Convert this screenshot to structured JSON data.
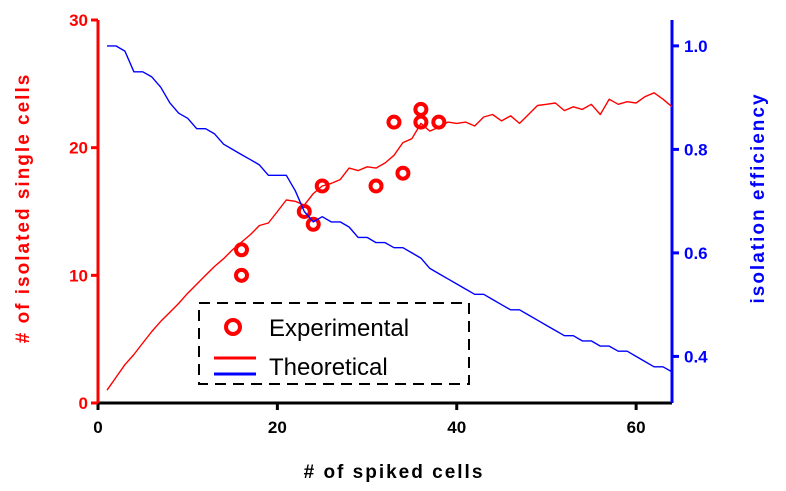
{
  "colors": {
    "experimental": "#ff0000",
    "theoretical_cells": "#ff0000",
    "theoretical_efficiency": "#0000ff",
    "left_axis": "#ff0000",
    "right_axis": "#0000ff",
    "bottom_axis": "#000000"
  },
  "chart_data": {
    "type": "line",
    "xlabel": "# of spiked cells",
    "ylabel_left": "# of isolated single cells",
    "ylabel_right": "isolation efficiency",
    "xlim": [
      0,
      64
    ],
    "ylim_left": [
      0,
      30
    ],
    "ylim_right": [
      0.31,
      1.05
    ],
    "x_ticks": [
      0,
      20,
      40,
      60
    ],
    "y_left_ticks": [
      0,
      10,
      20,
      30
    ],
    "y_right_ticks": [
      0.4,
      0.6,
      0.8,
      1.0
    ],
    "x_tick_labels": [
      "0",
      "20",
      "40",
      "60"
    ],
    "y_left_tick_labels": [
      "0",
      "10",
      "20",
      "30"
    ],
    "y_right_tick_labels": [
      "0.4",
      "0.6",
      "0.8",
      "1.0"
    ],
    "grid": false,
    "legend": {
      "position": "bottom-center",
      "entries": [
        "Experimental",
        "Theoretical"
      ]
    },
    "series": [
      {
        "name": "Experimental",
        "kind": "scatter",
        "axis": "left",
        "x": [
          16,
          16,
          23,
          24,
          25,
          31,
          33,
          34,
          36,
          36,
          38
        ],
        "y": [
          12,
          10,
          15,
          14,
          17,
          17,
          22,
          18,
          23,
          22,
          22
        ]
      },
      {
        "name": "Theoretical",
        "kind": "line",
        "axis": "left",
        "x": [
          1,
          2,
          3,
          4,
          5,
          6,
          7,
          8,
          9,
          10,
          11,
          12,
          13,
          14,
          15,
          16,
          17,
          18,
          19,
          20,
          21,
          22,
          23,
          24,
          25,
          26,
          27,
          28,
          29,
          30,
          31,
          32,
          33,
          34,
          35,
          36,
          37,
          38,
          39,
          40,
          41,
          42,
          43,
          44,
          45,
          46,
          47,
          48,
          49,
          50,
          51,
          52,
          53,
          54,
          55,
          56,
          57,
          58,
          59,
          60,
          61,
          62,
          63,
          64
        ],
        "y": [
          1.0,
          2.0,
          3.0,
          3.8,
          4.7,
          5.6,
          6.4,
          7.1,
          7.8,
          8.6,
          9.3,
          10.0,
          10.7,
          11.3,
          12.0,
          12.6,
          13.2,
          13.9,
          14.1,
          15.0,
          15.9,
          15.8,
          15.5,
          16.4,
          17.0,
          17.2,
          17.5,
          18.4,
          18.2,
          18.5,
          18.4,
          18.8,
          19.4,
          20.4,
          20.7,
          21.9,
          21.3,
          21.6,
          22.0,
          21.9,
          22.0,
          21.7,
          22.4,
          22.6,
          22.1,
          22.5,
          21.9,
          22.6,
          23.3,
          23.4,
          23.5,
          22.9,
          23.2,
          23.0,
          23.4,
          22.6,
          23.8,
          23.4,
          23.6,
          23.5,
          24.0,
          24.3,
          23.8,
          23.2
        ]
      },
      {
        "name": "Theoretical",
        "kind": "line",
        "axis": "right",
        "x": [
          1,
          2,
          3,
          4,
          5,
          6,
          7,
          8,
          9,
          10,
          11,
          12,
          13,
          14,
          15,
          16,
          17,
          18,
          19,
          20,
          21,
          22,
          23,
          24,
          25,
          26,
          27,
          28,
          29,
          30,
          31,
          32,
          33,
          34,
          35,
          36,
          37,
          38,
          39,
          40,
          41,
          42,
          43,
          44,
          45,
          46,
          47,
          48,
          49,
          50,
          51,
          52,
          53,
          54,
          55,
          56,
          57,
          58,
          59,
          60,
          61,
          62,
          63,
          64
        ],
        "y": [
          1.0,
          1.0,
          0.99,
          0.95,
          0.95,
          0.94,
          0.92,
          0.89,
          0.87,
          0.86,
          0.84,
          0.84,
          0.83,
          0.81,
          0.8,
          0.79,
          0.78,
          0.77,
          0.75,
          0.75,
          0.75,
          0.72,
          0.68,
          0.66,
          0.67,
          0.66,
          0.66,
          0.65,
          0.63,
          0.63,
          0.62,
          0.62,
          0.61,
          0.61,
          0.6,
          0.59,
          0.57,
          0.56,
          0.55,
          0.54,
          0.53,
          0.52,
          0.52,
          0.51,
          0.5,
          0.49,
          0.49,
          0.48,
          0.47,
          0.46,
          0.45,
          0.44,
          0.44,
          0.43,
          0.43,
          0.42,
          0.42,
          0.41,
          0.41,
          0.4,
          0.39,
          0.38,
          0.38,
          0.37
        ]
      }
    ]
  }
}
